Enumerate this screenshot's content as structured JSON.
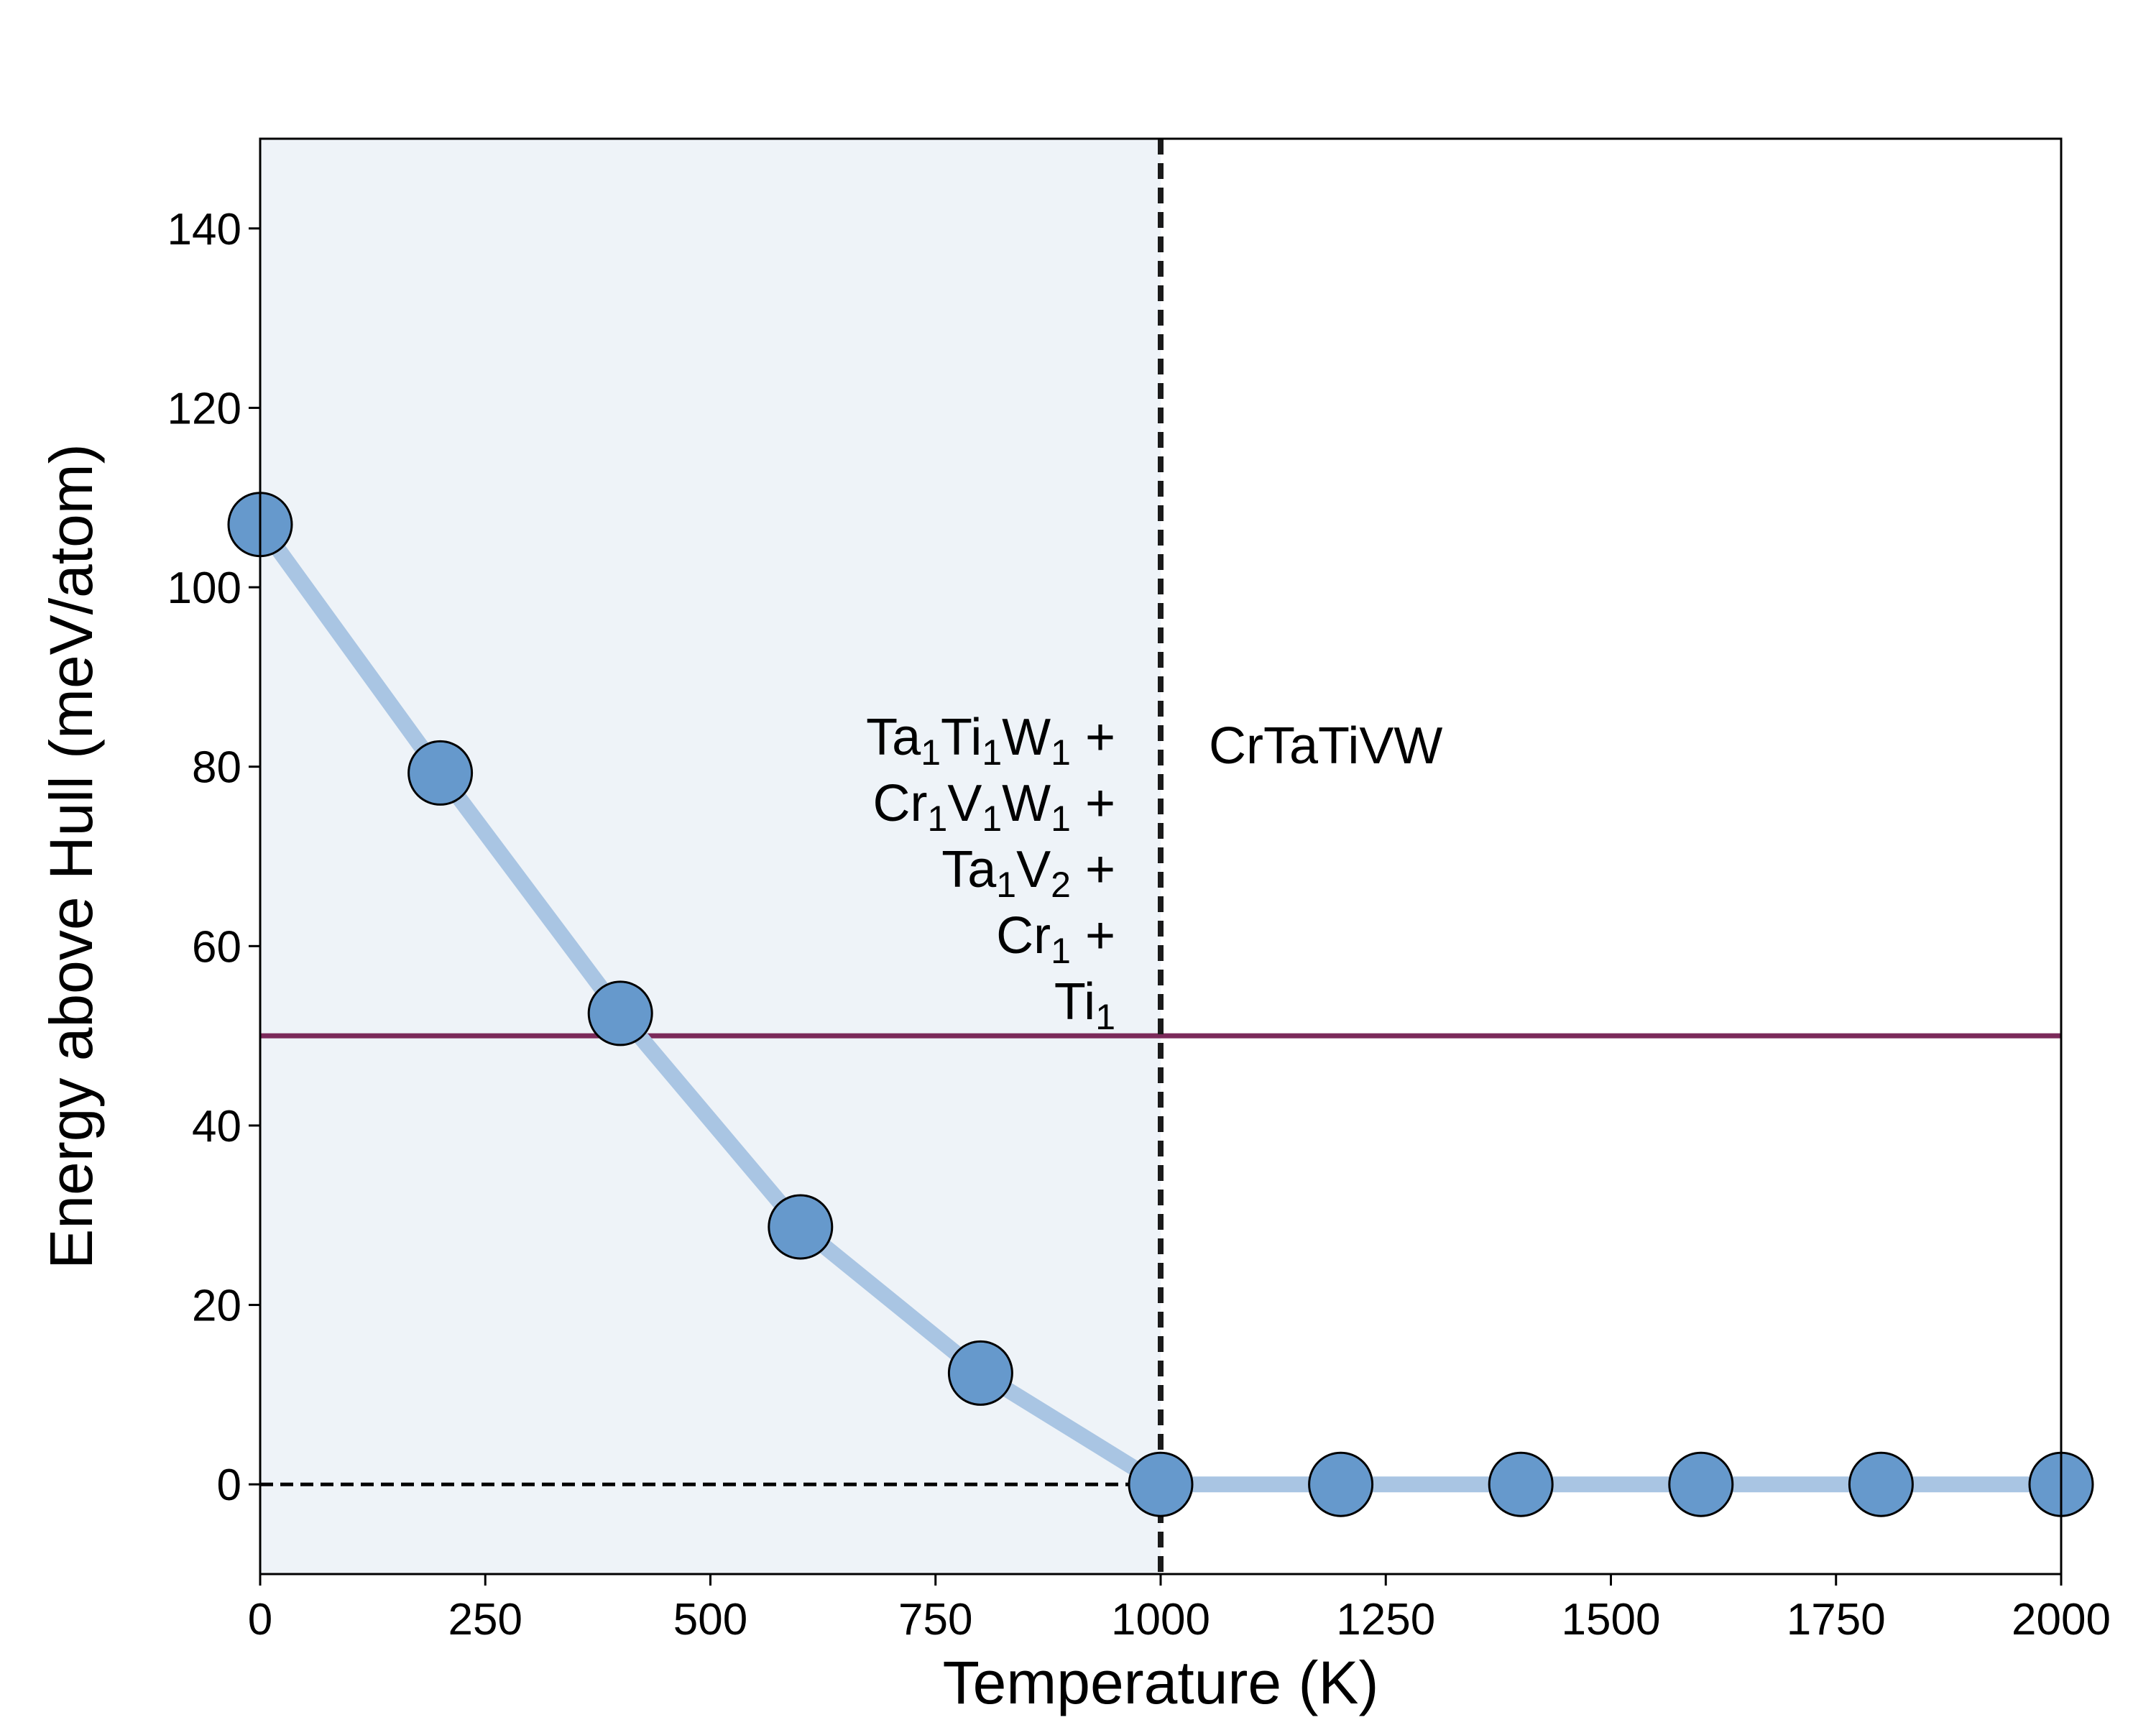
{
  "chart_data": {
    "type": "scatter",
    "xlabel": "Temperature (K)",
    "ylabel": "Energy above Hull (meV/atom)",
    "xlim": [
      0,
      2000
    ],
    "ylim": [
      -10,
      150
    ],
    "x_ticks": [
      0,
      250,
      500,
      750,
      1000,
      1250,
      1500,
      1750,
      2000
    ],
    "y_ticks": [
      0,
      20,
      40,
      60,
      80,
      100,
      120,
      140
    ],
    "series": [
      {
        "x": [
          0,
          200,
          400,
          600,
          800,
          1000,
          1200,
          1400,
          1600,
          1800,
          2000
        ],
        "y": [
          107,
          79.3,
          52.5,
          28.7,
          12.4,
          0,
          0,
          0,
          0,
          0,
          0
        ],
        "marker_color": "#6699cc",
        "line_color": "#a9c5e3"
      }
    ],
    "reference_lines": {
      "horizontal_solid": {
        "y": 50,
        "color": "#7b2a5a"
      },
      "horizontal_dashed": {
        "y": 0,
        "color": "#000000"
      },
      "vertical_dashed": {
        "x": 1000,
        "color": "#1a1a1a"
      }
    },
    "shaded_region": {
      "x_from": 0,
      "x_to": 1000,
      "color": "#eef3f8"
    },
    "annotations": {
      "left_region": [
        {
          "parts": [
            {
              "t": "Ta"
            },
            {
              "t": "1",
              "sub": true
            },
            {
              "t": "Ti"
            },
            {
              "t": "1",
              "sub": true
            },
            {
              "t": "W"
            },
            {
              "t": "1",
              "sub": true
            },
            {
              "t": " +"
            }
          ]
        },
        {
          "parts": [
            {
              "t": "Cr"
            },
            {
              "t": "1",
              "sub": true
            },
            {
              "t": "V"
            },
            {
              "t": "1",
              "sub": true
            },
            {
              "t": "W"
            },
            {
              "t": "1",
              "sub": true
            },
            {
              "t": " +"
            }
          ]
        },
        {
          "parts": [
            {
              "t": "Ta"
            },
            {
              "t": "1",
              "sub": true
            },
            {
              "t": "V"
            },
            {
              "t": "2",
              "sub": true
            },
            {
              "t": " +"
            }
          ]
        },
        {
          "parts": [
            {
              "t": "Cr"
            },
            {
              "t": "1",
              "sub": true
            },
            {
              "t": " +"
            }
          ]
        },
        {
          "parts": [
            {
              "t": "Ti"
            },
            {
              "t": "1",
              "sub": true
            }
          ]
        }
      ],
      "right_region": "CrTaTiVW"
    }
  }
}
